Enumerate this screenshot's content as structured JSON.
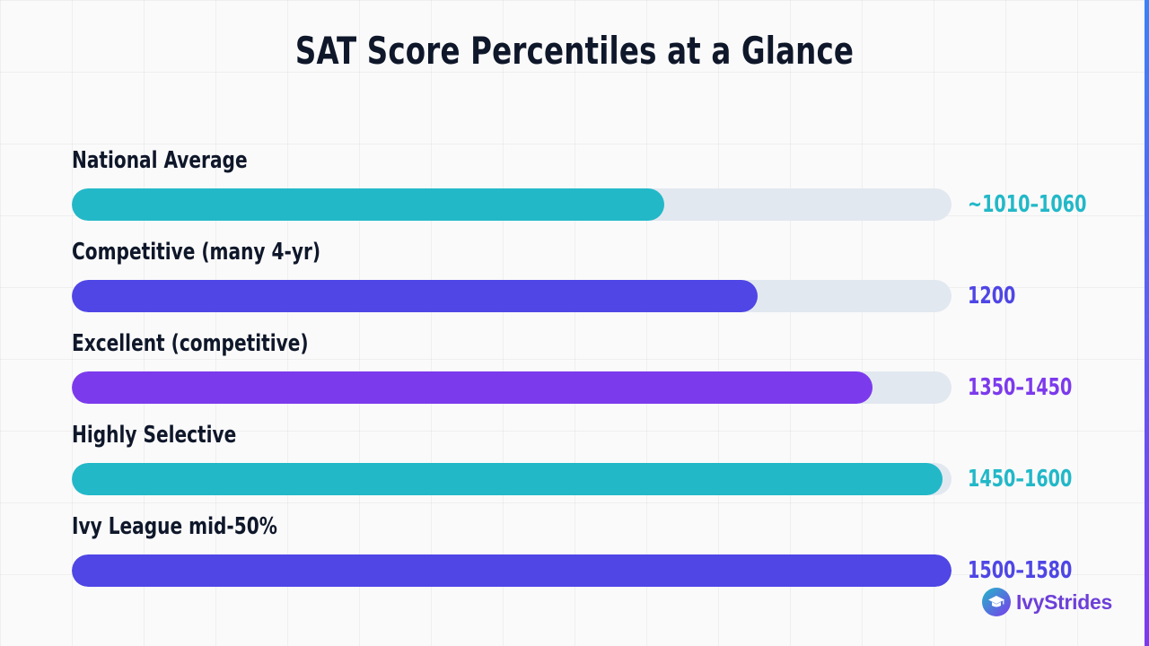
{
  "chart_data": {
    "type": "bar",
    "orientation": "horizontal",
    "title": "SAT Score Percentiles at a Glance",
    "categories": [
      "National Average",
      "Competitive (many 4-yr)",
      "Excellent (competitive)",
      "Highly Selective",
      "Ivy League mid-50%"
    ],
    "value_labels": [
      "~1010–1060",
      "1200",
      "1350–1450",
      "1450–1600",
      "1500–1580"
    ],
    "fill_percent": [
      67.3,
      78,
      91,
      99,
      100
    ],
    "colors": [
      "#22b8c8",
      "#4f46e5",
      "#7c3aed",
      "#22b8c8",
      "#4f46e5"
    ],
    "track_color": "#e2e8f0",
    "grid": true,
    "legend": "none"
  },
  "brand": {
    "name": "IvyStrides",
    "logo_icon": "graduation-cap-icon"
  }
}
